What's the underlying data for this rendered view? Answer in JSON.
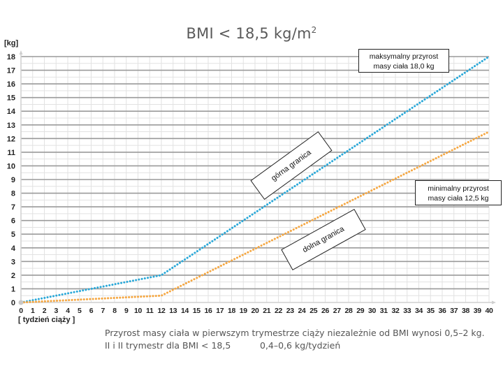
{
  "chart_data": {
    "type": "line",
    "title": "BMI < 18,5 kg/m²",
    "title_main": "BMI < 18,5 kg/m",
    "title_sup": "2",
    "ylabel": "[kg]",
    "xlabel": "[ tydzień ciąży ]",
    "xlim": [
      0,
      40
    ],
    "ylim": [
      0,
      18
    ],
    "x_ticks": [
      0,
      1,
      2,
      3,
      4,
      5,
      6,
      7,
      8,
      9,
      10,
      11,
      12,
      13,
      14,
      15,
      16,
      17,
      18,
      19,
      20,
      21,
      22,
      23,
      24,
      25,
      26,
      27,
      28,
      29,
      30,
      31,
      32,
      33,
      34,
      35,
      36,
      37,
      38,
      39,
      40
    ],
    "y_ticks": [
      0,
      1,
      2,
      3,
      4,
      5,
      6,
      7,
      8,
      9,
      10,
      11,
      12,
      13,
      14,
      15,
      16,
      17,
      18
    ],
    "grid": true,
    "series": [
      {
        "name": "górna granica",
        "color": "#2aa8d8",
        "style": "dotted",
        "points": [
          [
            0,
            0
          ],
          [
            12,
            2
          ],
          [
            40,
            18
          ]
        ]
      },
      {
        "name": "dolna granica",
        "color": "#f5a742",
        "style": "dotted",
        "points": [
          [
            0,
            0
          ],
          [
            12,
            0.5
          ],
          [
            40,
            12.5
          ]
        ]
      }
    ],
    "annotations": [
      {
        "id": "max",
        "text_line1": "maksymalny przyrost",
        "text_line2": "masy ciała 18,0 kg"
      },
      {
        "id": "min",
        "text_line1": "minimalny przyrost",
        "text_line2": "masy ciała 12,5 kg"
      },
      {
        "id": "upper",
        "text": "górna granica"
      },
      {
        "id": "lower",
        "text": "dolna granica"
      }
    ]
  },
  "notes": {
    "line1": "Przyrost masy ciała w pierwszym trymestrze ciąży niezależnie od BMI wynosi 0,5–2 kg.",
    "line2_left": "II i II trymestr dla BMI < 18,5",
    "line2_right": "0,4–0,6 kg/tydzień"
  },
  "colors": {
    "upper": "#2aa8d8",
    "lower": "#f5a742",
    "grid_major": "#9a9a9a",
    "grid_minor": "#e2e2e2"
  }
}
